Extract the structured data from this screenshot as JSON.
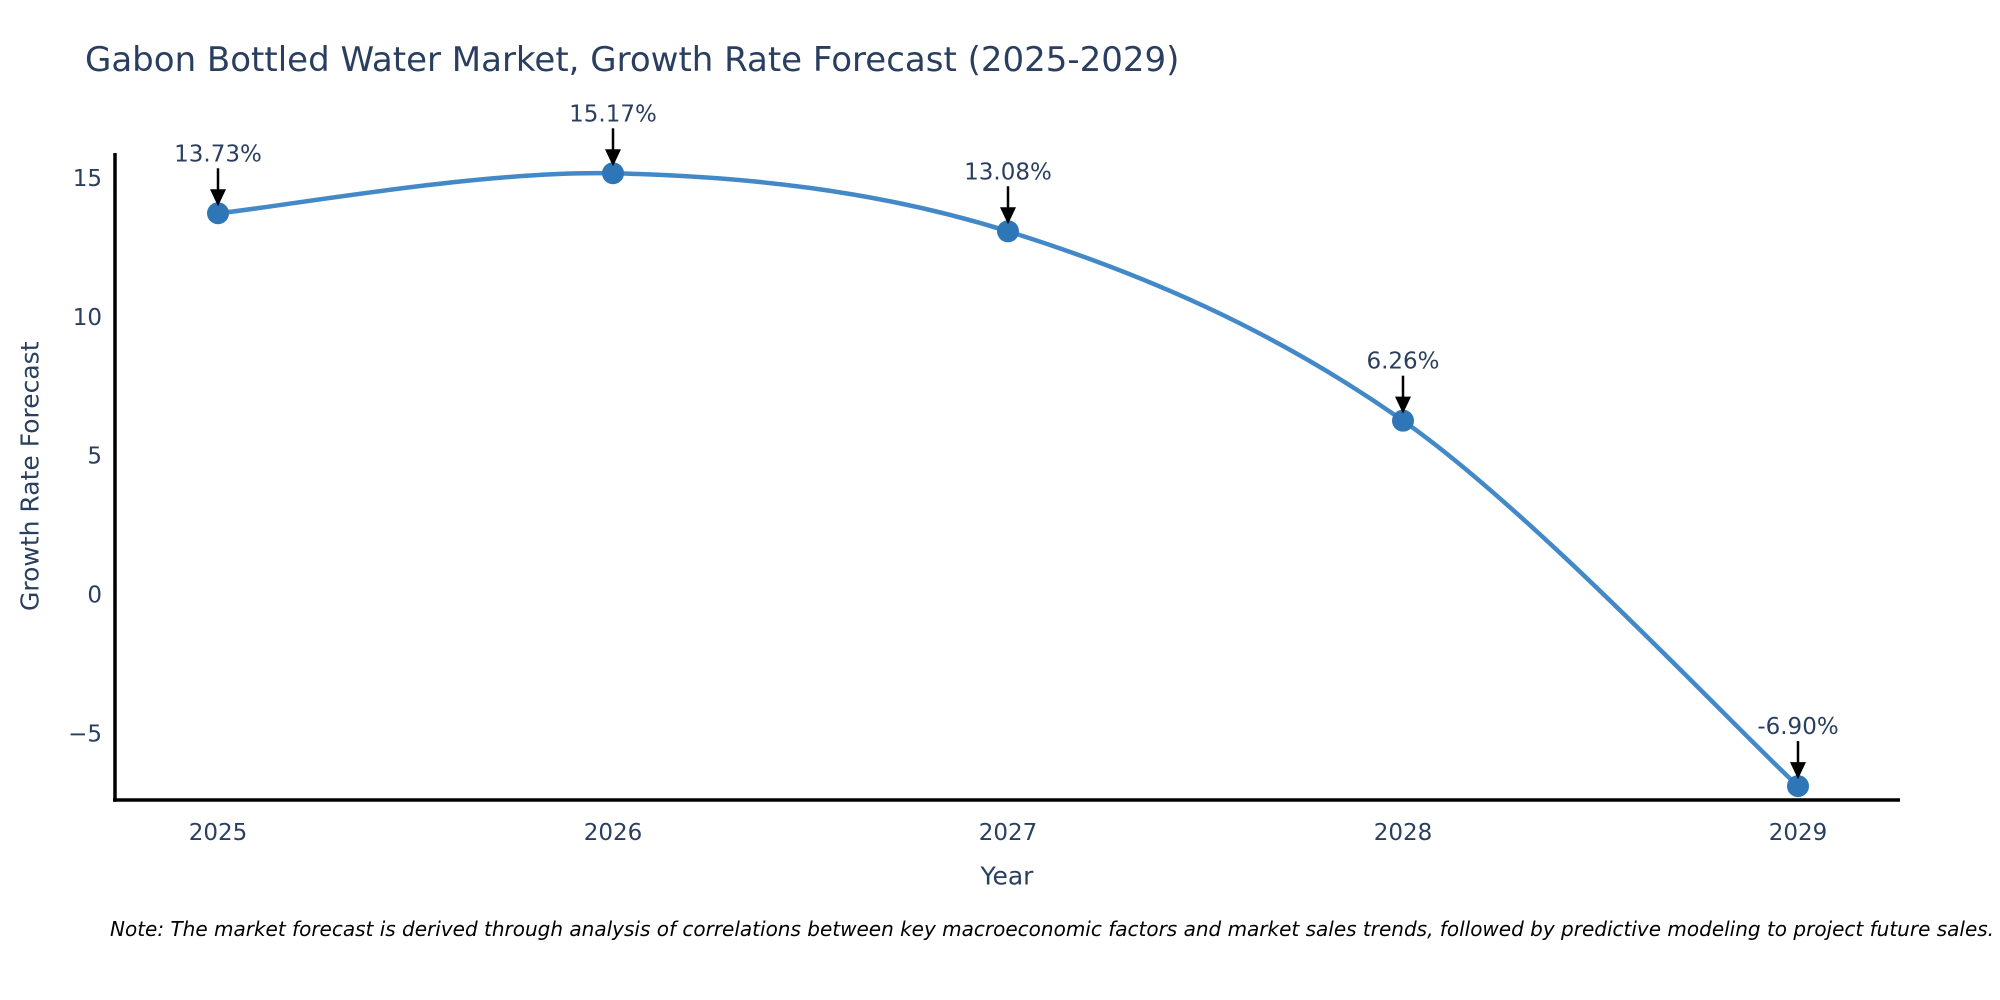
{
  "note": "Note: The market forecast is derived through analysis of correlations between key macroeconomic factors and market sales trends, followed by predictive modeling to project future sales.",
  "chart_data": {
    "type": "line",
    "line_shape": "spline",
    "title": "Gabon Bottled Water Market, Growth Rate Forecast (2025-2029)",
    "xlabel": "Year",
    "ylabel": "Growth Rate Forecast",
    "x": [
      "2025",
      "2026",
      "2027",
      "2028",
      "2029"
    ],
    "series": [
      {
        "name": "Growth Rate Forecast",
        "values": [
          13.73,
          15.17,
          13.08,
          6.26,
          -6.9
        ]
      }
    ],
    "point_labels": [
      "13.73%",
      "15.17%",
      "13.08%",
      "6.26%",
      "-6.90%"
    ],
    "yticks": {
      "values": [
        15,
        10,
        5,
        0,
        -5
      ],
      "labels": [
        "15",
        "10",
        "5",
        "0",
        "−5"
      ]
    },
    "ylim": [
      -7.4,
      15.9
    ],
    "grid": false,
    "legend": "none",
    "markers": true,
    "annotation_arrows": true,
    "colors": {
      "line": "#4389c8",
      "marker": "#2e76b5",
      "axis": "#000000",
      "text": "#2a3f5f",
      "annotation_arrow": "#000000",
      "note_text": "#000000",
      "background": "#ffffff"
    }
  }
}
